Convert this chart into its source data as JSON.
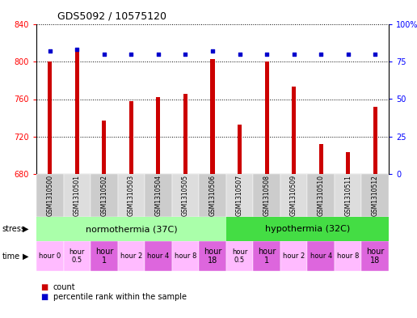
{
  "title": "GDS5092 / 10575120",
  "samples": [
    "GSM1310500",
    "GSM1310501",
    "GSM1310502",
    "GSM1310503",
    "GSM1310504",
    "GSM1310505",
    "GSM1310506",
    "GSM1310507",
    "GSM1310508",
    "GSM1310509",
    "GSM1310510",
    "GSM1310511",
    "GSM1310512"
  ],
  "counts": [
    800,
    815,
    737,
    758,
    762,
    766,
    803,
    733,
    800,
    773,
    712,
    703,
    752
  ],
  "percentiles": [
    82,
    83,
    80,
    80,
    80,
    80,
    82,
    80,
    80,
    80,
    80,
    80,
    80
  ],
  "ymin": 680,
  "ymax": 840,
  "yticks": [
    680,
    720,
    760,
    800,
    840
  ],
  "y2min": 0,
  "y2max": 100,
  "y2ticks": [
    0,
    25,
    50,
    75,
    100
  ],
  "bar_color": "#cc0000",
  "dot_color": "#0000cc",
  "stress_normothermia": "normothermia (37C)",
  "stress_hypothermia": "hypothermia (32C)",
  "norm_color": "#aaffaa",
  "hypo_color": "#44dd44",
  "time_labels": [
    "hour 0",
    "hour\n0.5",
    "hour\n1",
    "hour 2",
    "hour 4",
    "hour 8",
    "hour\n18",
    "hour\n0.5",
    "hour\n1",
    "hour 2",
    "hour 4",
    "hour 8",
    "hour\n18"
  ],
  "time_colors": [
    "#ffbbff",
    "#ffbbff",
    "#dd66dd",
    "#ffbbff",
    "#dd66dd",
    "#ffbbff",
    "#dd66dd",
    "#ffbbff",
    "#dd66dd",
    "#ffbbff",
    "#dd66dd",
    "#ffbbff",
    "#dd66dd"
  ],
  "sample_colors_even": "#cccccc",
  "sample_colors_odd": "#dddddd",
  "bg_color": "#ffffff",
  "label_count": "count",
  "label_percentile": "percentile rank within the sample"
}
